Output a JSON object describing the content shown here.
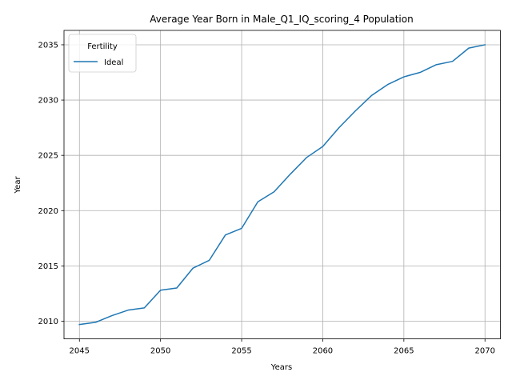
{
  "chart_data": {
    "type": "line",
    "title": "Average Year Born in Male_Q1_IQ_scoring_4 Population",
    "xlabel": "Years",
    "ylabel": "Year",
    "xlim": [
      2044.05,
      2070.95
    ],
    "ylim": [
      2008.4,
      2036.3
    ],
    "x_ticks": [
      2045,
      2050,
      2055,
      2060,
      2065,
      2070
    ],
    "y_ticks": [
      2010,
      2015,
      2020,
      2025,
      2030,
      2035
    ],
    "grid": true,
    "legend": {
      "title": "Fertility",
      "placement": "top-left"
    },
    "series": [
      {
        "name": "Ideal",
        "color": "#1f77b4",
        "x": [
          2045,
          2046,
          2047,
          2048,
          2049,
          2050,
          2051,
          2052,
          2053,
          2054,
          2055,
          2056,
          2057,
          2058,
          2059,
          2060,
          2061,
          2062,
          2063,
          2064,
          2065,
          2066,
          2067,
          2068,
          2069,
          2070
        ],
        "y": [
          2009.7,
          2009.9,
          2010.5,
          2011.0,
          2011.2,
          2012.8,
          2013.0,
          2014.8,
          2015.5,
          2017.8,
          2018.4,
          2020.8,
          2021.7,
          2023.3,
          2024.8,
          2025.8,
          2027.5,
          2029.0,
          2030.4,
          2031.4,
          2032.1,
          2032.5,
          2033.2,
          2033.5,
          2034.7,
          2035.0
        ]
      }
    ]
  }
}
